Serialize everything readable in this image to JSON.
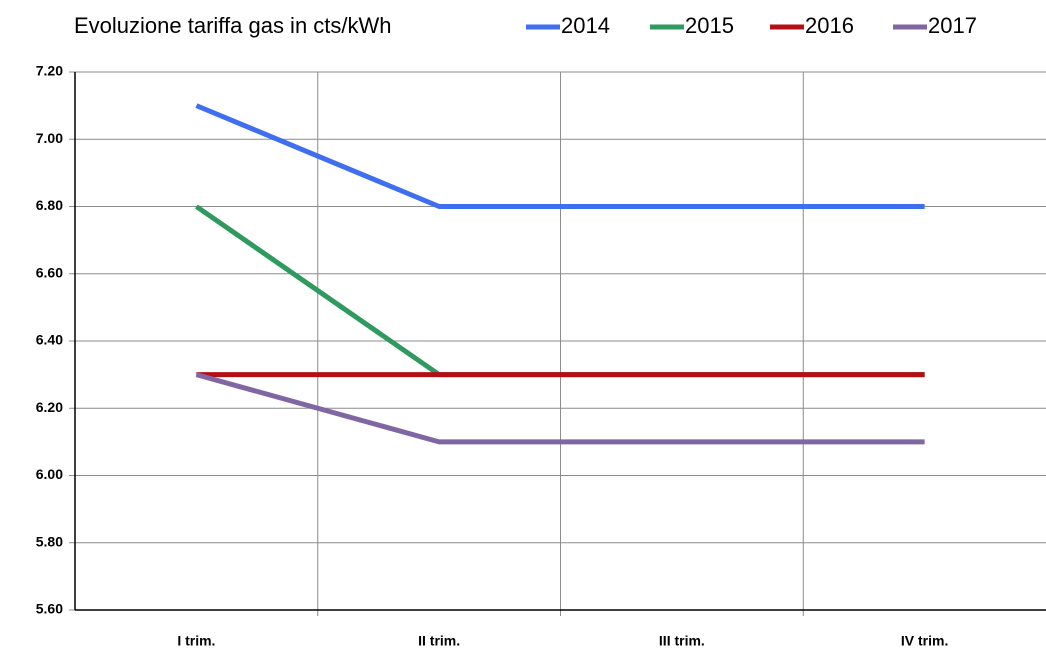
{
  "chart_data": {
    "type": "line",
    "title": "Evoluzione tariffa gas in cts/kWh",
    "categories": [
      "I trim.",
      "II trim.",
      "III trim.",
      "IV trim."
    ],
    "series": [
      {
        "name": "2014",
        "color": "#3f6ff0",
        "values": [
          7.1,
          6.8,
          6.8,
          6.8
        ]
      },
      {
        "name": "2015",
        "color": "#2e9a5e",
        "values": [
          6.8,
          6.3,
          6.3,
          6.3
        ]
      },
      {
        "name": "2016",
        "color": "#b50f16",
        "values": [
          6.3,
          6.3,
          6.3,
          6.3
        ]
      },
      {
        "name": "2017",
        "color": "#8066a2",
        "values": [
          6.3,
          6.1,
          6.1,
          6.1
        ]
      }
    ],
    "ylim": [
      5.6,
      7.2
    ],
    "yticks": [
      {
        "value": 5.6,
        "label": "5.60"
      },
      {
        "value": 5.8,
        "label": "5.80"
      },
      {
        "value": 6.0,
        "label": "6.00"
      },
      {
        "value": 6.2,
        "label": "6.20"
      },
      {
        "value": 6.4,
        "label": "6.40"
      },
      {
        "value": 6.6,
        "label": "6.60"
      },
      {
        "value": 6.8,
        "label": "6.80"
      },
      {
        "value": 7.0,
        "label": "7.00"
      },
      {
        "value": 7.2,
        "label": "7.20"
      }
    ],
    "grid": true,
    "legend": "top"
  }
}
